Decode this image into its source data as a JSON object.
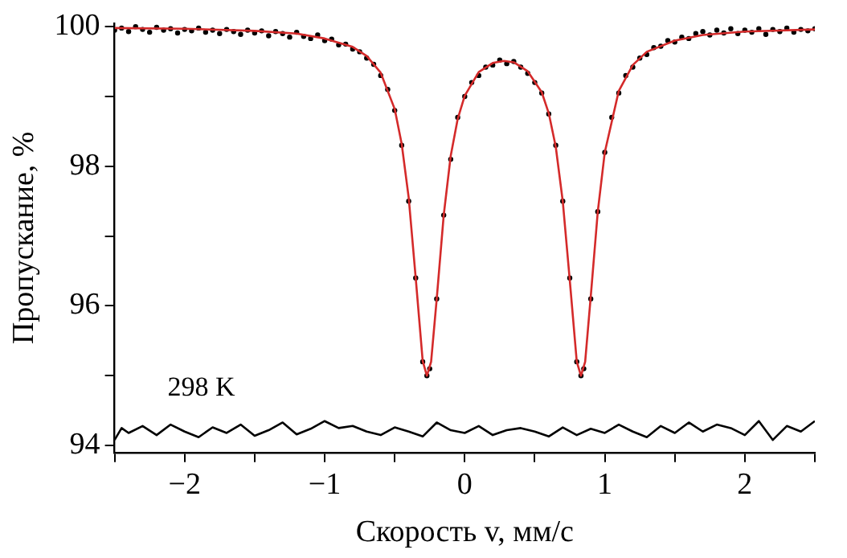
{
  "chart_data": {
    "type": "scatter",
    "xlabel": "Скорость v, мм/с",
    "ylabel": "Пропускание, %",
    "annotations": [
      "298 K"
    ],
    "xlim": [
      -2.5,
      2.5
    ],
    "ylim": [
      93.9,
      100.05
    ],
    "xticks": [
      {
        "value": -2.5,
        "label": null
      },
      {
        "value": -2,
        "label": "−2"
      },
      {
        "value": -1.5,
        "label": null
      },
      {
        "value": -1,
        "label": "−1"
      },
      {
        "value": -0.5,
        "label": null
      },
      0,
      {
        "value": 0.5,
        "label": null
      },
      1,
      {
        "value": 1.5,
        "label": null
      },
      2,
      {
        "value": 2.5,
        "label": null
      }
    ],
    "yticks": [
      94,
      {
        "value": 95,
        "label": null
      },
      96,
      {
        "value": 97,
        "label": null
      },
      98,
      {
        "value": 99,
        "label": null
      },
      100
    ],
    "grid": false,
    "series": [
      {
        "type": "scatter",
        "color": "#000000",
        "marker": "circle",
        "x": [
          -2.5,
          -2.45,
          -2.4,
          -2.35,
          -2.3,
          -2.25,
          -2.2,
          -2.15,
          -2.1,
          -2.05,
          -2.0,
          -1.95,
          -1.9,
          -1.85,
          -1.8,
          -1.75,
          -1.7,
          -1.65,
          -1.6,
          -1.55,
          -1.5,
          -1.45,
          -1.4,
          -1.35,
          -1.3,
          -1.25,
          -1.2,
          -1.15,
          -1.1,
          -1.05,
          -1.0,
          -0.95,
          -0.9,
          -0.85,
          -0.8,
          -0.75,
          -0.7,
          -0.65,
          -0.6,
          -0.55,
          -0.5,
          -0.45,
          -0.4,
          -0.35,
          -0.3,
          -0.27,
          -0.25,
          -0.2,
          -0.15,
          -0.1,
          -0.05,
          0,
          0.05,
          0.1,
          0.15,
          0.2,
          0.25,
          0.3,
          0.35,
          0.4,
          0.45,
          0.5,
          0.55,
          0.6,
          0.65,
          0.7,
          0.75,
          0.8,
          0.83,
          0.85,
          0.9,
          0.95,
          1.0,
          1.05,
          1.1,
          1.15,
          1.2,
          1.25,
          1.3,
          1.35,
          1.4,
          1.45,
          1.5,
          1.55,
          1.6,
          1.65,
          1.7,
          1.75,
          1.8,
          1.85,
          1.9,
          1.95,
          2.0,
          2.05,
          2.1,
          2.15,
          2.2,
          2.25,
          2.3,
          2.35,
          2.4,
          2.45,
          2.5
        ],
        "values": [
          99.95,
          99.98,
          99.93,
          100.0,
          99.96,
          99.92,
          99.99,
          99.95,
          99.97,
          99.91,
          99.96,
          99.94,
          99.98,
          99.92,
          99.95,
          99.9,
          99.96,
          99.93,
          99.89,
          99.95,
          99.91,
          99.94,
          99.87,
          99.93,
          99.9,
          99.85,
          99.92,
          99.86,
          99.83,
          99.88,
          99.8,
          99.82,
          99.74,
          99.75,
          99.68,
          99.64,
          99.55,
          99.46,
          99.3,
          99.1,
          98.8,
          98.3,
          97.5,
          96.4,
          95.2,
          95.0,
          95.1,
          96.1,
          97.3,
          98.1,
          98.7,
          99.0,
          99.2,
          99.3,
          99.42,
          99.45,
          99.52,
          99.47,
          99.5,
          99.42,
          99.33,
          99.2,
          99.05,
          98.75,
          98.3,
          97.5,
          96.4,
          95.2,
          95.0,
          95.1,
          96.1,
          97.35,
          98.2,
          98.7,
          99.05,
          99.3,
          99.42,
          99.55,
          99.6,
          99.7,
          99.72,
          99.8,
          99.78,
          99.85,
          99.83,
          99.9,
          99.93,
          99.88,
          99.95,
          99.91,
          99.97,
          99.9,
          99.95,
          99.92,
          99.97,
          99.89,
          99.96,
          99.93,
          99.98,
          99.92,
          99.96,
          99.94,
          99.97
        ]
      },
      {
        "type": "line",
        "color": "#d42a2a",
        "marker": "none",
        "x": [
          -2.5,
          -2.0,
          -1.5,
          -1.2,
          -1.0,
          -0.8,
          -0.7,
          -0.6,
          -0.5,
          -0.45,
          -0.4,
          -0.35,
          -0.3,
          -0.27,
          -0.24,
          -0.2,
          -0.15,
          -0.1,
          -0.05,
          0,
          0.1,
          0.2,
          0.28,
          0.35,
          0.45,
          0.55,
          0.6,
          0.65,
          0.7,
          0.75,
          0.8,
          0.83,
          0.86,
          0.9,
          0.95,
          1.0,
          1.1,
          1.2,
          1.3,
          1.5,
          1.7,
          2.0,
          2.5
        ],
        "values": [
          99.98,
          99.97,
          99.94,
          99.9,
          99.83,
          99.71,
          99.58,
          99.34,
          98.82,
          98.32,
          97.55,
          96.4,
          95.21,
          95.0,
          95.2,
          96.1,
          97.3,
          98.15,
          98.68,
          99.01,
          99.35,
          99.48,
          99.51,
          99.49,
          99.36,
          99.06,
          98.76,
          98.28,
          97.5,
          96.37,
          95.2,
          95.0,
          95.2,
          96.14,
          97.35,
          98.2,
          99.08,
          99.45,
          99.64,
          99.8,
          99.88,
          99.93,
          99.96
        ]
      },
      {
        "type": "line",
        "color": "#000000",
        "marker": "none",
        "x": [
          -2.5,
          -2.45,
          -2.4,
          -2.3,
          -2.2,
          -2.1,
          -2.0,
          -1.9,
          -1.8,
          -1.7,
          -1.6,
          -1.5,
          -1.4,
          -1.3,
          -1.2,
          -1.1,
          -1.0,
          -0.9,
          -0.8,
          -0.7,
          -0.6,
          -0.5,
          -0.4,
          -0.3,
          -0.2,
          -0.1,
          0,
          0.1,
          0.2,
          0.3,
          0.4,
          0.5,
          0.6,
          0.7,
          0.8,
          0.9,
          1.0,
          1.1,
          1.2,
          1.3,
          1.4,
          1.5,
          1.6,
          1.7,
          1.8,
          1.9,
          2.0,
          2.1,
          2.2,
          2.3,
          2.4,
          2.5
        ],
        "values": [
          94.08,
          94.25,
          94.18,
          94.28,
          94.15,
          94.3,
          94.2,
          94.12,
          94.26,
          94.18,
          94.3,
          94.14,
          94.22,
          94.33,
          94.16,
          94.24,
          94.35,
          94.25,
          94.28,
          94.2,
          94.15,
          94.26,
          94.2,
          94.13,
          94.33,
          94.22,
          94.18,
          94.28,
          94.15,
          94.22,
          94.25,
          94.2,
          94.13,
          94.26,
          94.15,
          94.24,
          94.18,
          94.3,
          94.2,
          94.12,
          94.28,
          94.18,
          94.33,
          94.2,
          94.3,
          94.25,
          94.15,
          94.35,
          94.08,
          94.28,
          94.2,
          94.35
        ]
      }
    ]
  }
}
